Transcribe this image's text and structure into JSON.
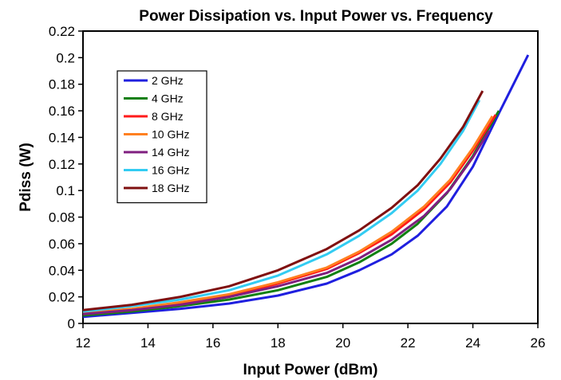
{
  "chart_data": {
    "type": "line",
    "title": "Power Dissipation vs. Input Power vs. Frequency",
    "xlabel": "Input Power (dBm)",
    "ylabel": "Pdiss (W)",
    "xlim": [
      12,
      26
    ],
    "ylim": [
      0,
      0.22
    ],
    "xticks": [
      12,
      14,
      16,
      18,
      20,
      22,
      24,
      26
    ],
    "yticks": [
      0,
      0.02,
      0.04,
      0.06,
      0.08,
      0.1,
      0.12,
      0.14,
      0.16,
      0.18,
      0.2,
      0.22
    ],
    "xtick_labels": [
      "12",
      "14",
      "16",
      "18",
      "20",
      "22",
      "24",
      "26"
    ],
    "ytick_labels": [
      "0",
      "0.02",
      "0.04",
      "0.06",
      "0.08",
      "0.1",
      "0.12",
      "0.14",
      "0.16",
      "0.18",
      "0.2",
      "0.22"
    ],
    "grid": false,
    "legend_position": "top-left",
    "series": [
      {
        "name": "2 GHz",
        "color": "#1f1fdf",
        "x": [
          12,
          13.5,
          15,
          16.5,
          18,
          19.5,
          20.5,
          21.5,
          22.3,
          23.2,
          24,
          24.8,
          25.7
        ],
        "y": [
          0.005,
          0.008,
          0.011,
          0.015,
          0.021,
          0.03,
          0.04,
          0.052,
          0.066,
          0.088,
          0.118,
          0.158,
          0.202
        ]
      },
      {
        "name": "4 GHz",
        "color": "#128012",
        "x": [
          12,
          13.5,
          15,
          16.5,
          18,
          19.5,
          20.5,
          21.5,
          22.3,
          23.2,
          24,
          24.8
        ],
        "y": [
          0.006,
          0.009,
          0.013,
          0.018,
          0.025,
          0.035,
          0.046,
          0.06,
          0.075,
          0.098,
          0.126,
          0.16
        ]
      },
      {
        "name": "8 GHz",
        "color": "#ff1a1a",
        "x": [
          12,
          13.5,
          15,
          16.5,
          18,
          19.5,
          20.5,
          21.5,
          22.5,
          23.3,
          24,
          24.7
        ],
        "y": [
          0.007,
          0.01,
          0.015,
          0.021,
          0.03,
          0.041,
          0.053,
          0.067,
          0.086,
          0.106,
          0.13,
          0.157
        ]
      },
      {
        "name": "10 GHz",
        "color": "#ff8020",
        "x": [
          12,
          13.5,
          15,
          16.5,
          18,
          19.5,
          20.5,
          21.5,
          22.5,
          23.3,
          24,
          24.6
        ],
        "y": [
          0.008,
          0.011,
          0.016,
          0.022,
          0.031,
          0.042,
          0.054,
          0.069,
          0.088,
          0.108,
          0.132,
          0.156
        ]
      },
      {
        "name": "14 GHz",
        "color": "#7f1f7f",
        "x": [
          12,
          13.5,
          15,
          16.5,
          18,
          19.5,
          20.5,
          21.5,
          22.5,
          23.3,
          24,
          24.5
        ],
        "y": [
          0.007,
          0.01,
          0.014,
          0.02,
          0.028,
          0.038,
          0.049,
          0.063,
          0.081,
          0.101,
          0.125,
          0.145
        ]
      },
      {
        "name": "16 GHz",
        "color": "#33ccf2",
        "x": [
          12,
          13.5,
          15,
          16.5,
          18,
          19.5,
          20.5,
          21.5,
          22.3,
          23,
          23.7,
          24.2
        ],
        "y": [
          0.009,
          0.013,
          0.018,
          0.025,
          0.036,
          0.052,
          0.066,
          0.083,
          0.1,
          0.12,
          0.145,
          0.168
        ]
      },
      {
        "name": "18 GHz",
        "color": "#7f1010",
        "x": [
          12,
          13.5,
          15,
          16.5,
          18,
          19.5,
          20.5,
          21.5,
          22.3,
          23,
          23.7,
          24.3
        ],
        "y": [
          0.01,
          0.014,
          0.02,
          0.028,
          0.04,
          0.056,
          0.07,
          0.087,
          0.104,
          0.124,
          0.148,
          0.175
        ]
      }
    ]
  }
}
